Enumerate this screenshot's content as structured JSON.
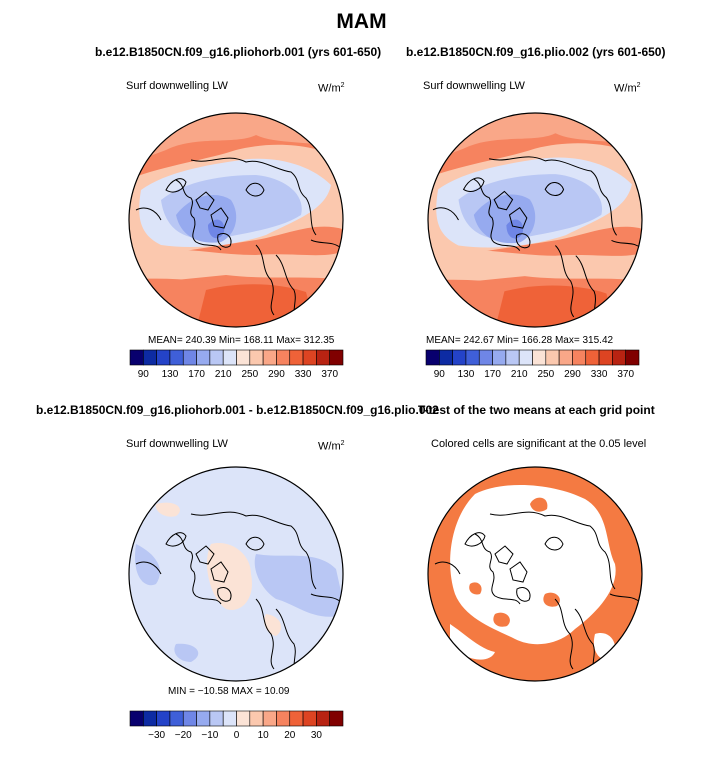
{
  "figure": {
    "title": "MAM"
  },
  "panels": [
    {
      "title": "b.e12.B1850CN.f09_g16.pliohorb.001 (yrs 601-650)",
      "left_label": "Surf downwelling LW",
      "unit_base": "W/m",
      "unit_exp": "2",
      "stats": "MEAN= 240.39   Min= 168.11   Max= 312.35",
      "colorbar_ticks": [
        "90",
        "130",
        "170",
        "210",
        "250",
        "290",
        "330",
        "370"
      ]
    },
    {
      "title": "b.e12.B1850CN.f09_g16.plio.002 (yrs 601-650)",
      "left_label": "Surf downwelling LW",
      "unit_base": "W/m",
      "unit_exp": "2",
      "stats": "MEAN= 242.67   Min= 166.28   Max= 315.42",
      "colorbar_ticks": [
        "90",
        "130",
        "170",
        "210",
        "250",
        "290",
        "330",
        "370"
      ]
    },
    {
      "title": "b.e12.B1850CN.f09_g16.pliohorb.001 - b.e12.B1850CN.f09_g16.plio.002",
      "left_label": "Surf downwelling LW",
      "unit_base": "W/m",
      "unit_exp": "2",
      "stats": "MIN = −10.58  MAX =  10.09",
      "colorbar_ticks": [
        "−30",
        "−20",
        "−10",
        "0",
        "10",
        "20",
        "30"
      ]
    },
    {
      "title": "T-test of the two means at each grid point",
      "left_label": "Colored cells are significant at the 0.05 level"
    }
  ],
  "chart_data": [
    {
      "type": "heatmap",
      "projection": "north polar stereographic",
      "variable": "Surf downwelling LW",
      "units": "W/m2",
      "mean": 240.39,
      "min": 168.11,
      "max": 312.35,
      "colorbar": {
        "min": 90,
        "max": 370,
        "step": 20,
        "ticks": [
          90,
          130,
          170,
          210,
          250,
          290,
          330,
          370
        ]
      }
    },
    {
      "type": "heatmap",
      "projection": "north polar stereographic",
      "variable": "Surf downwelling LW",
      "units": "W/m2",
      "mean": 242.67,
      "min": 166.28,
      "max": 315.42,
      "colorbar": {
        "min": 90,
        "max": 370,
        "step": 20,
        "ticks": [
          90,
          130,
          170,
          210,
          250,
          290,
          330,
          370
        ]
      }
    },
    {
      "type": "heatmap",
      "projection": "north polar stereographic",
      "variable": "Surf downwelling LW (difference)",
      "units": "W/m2",
      "min": -10.58,
      "max": 10.09,
      "colorbar": {
        "min": -35,
        "max": 35,
        "step": 5,
        "ticks": [
          -30,
          -20,
          -10,
          0,
          10,
          20,
          30
        ]
      }
    },
    {
      "type": "heatmap",
      "projection": "north polar stereographic",
      "variable": "T-test significance mask",
      "significance_level": 0.05
    }
  ],
  "colors": {
    "colormap": [
      "#08006e",
      "#0d2ba3",
      "#2443c8",
      "#3f5fd8",
      "#6f86e6",
      "#96aaef",
      "#b9c7f4",
      "#dce4f9",
      "#fbe3d6",
      "#fbc8ae",
      "#f9a788",
      "#f6835f",
      "#ef6238",
      "#dd4422",
      "#b82312",
      "#800000"
    ],
    "significant": "#f47a42",
    "coast": "#000000"
  }
}
